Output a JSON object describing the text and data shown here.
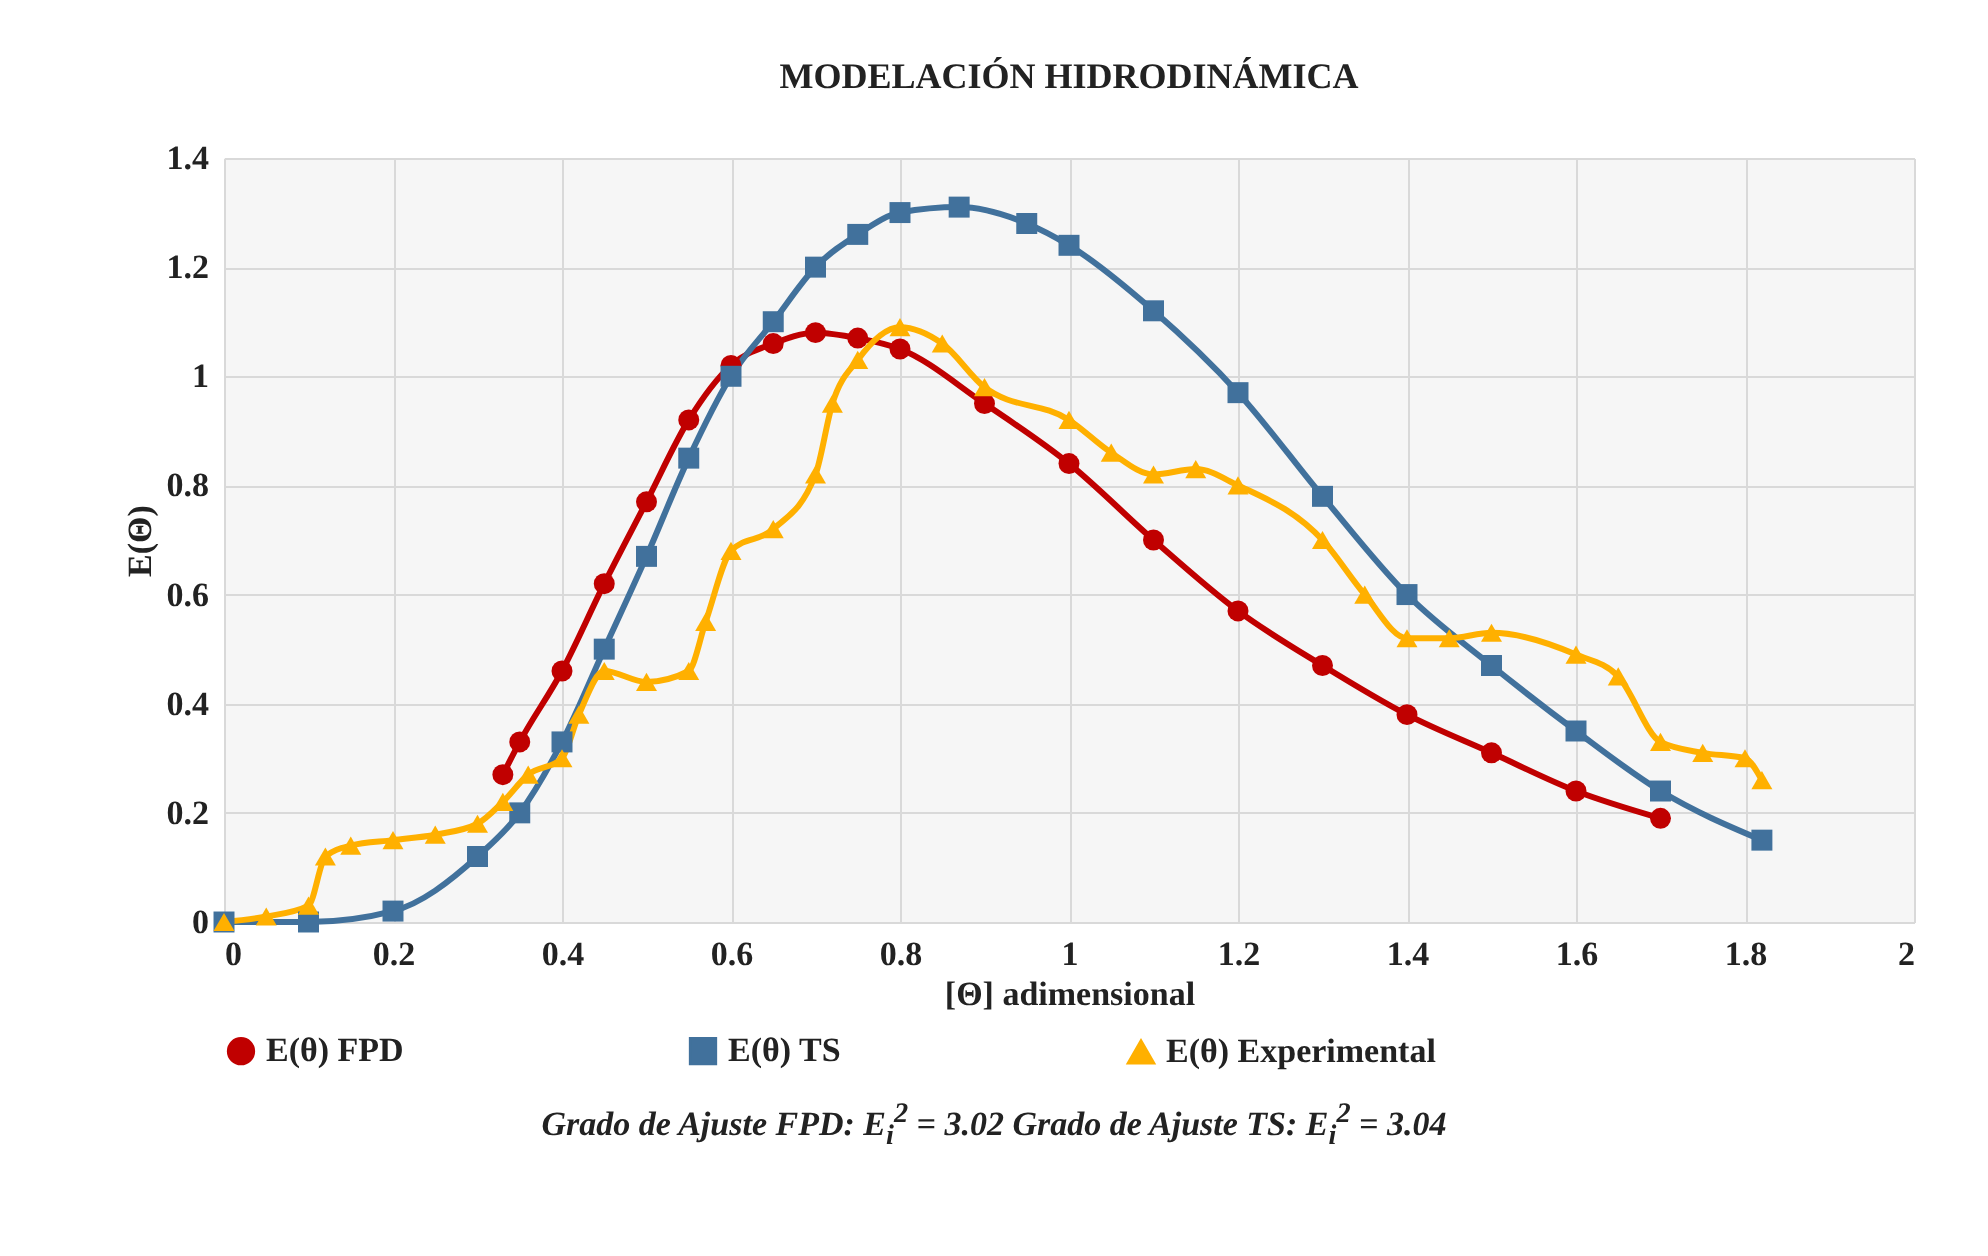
{
  "chart_data": {
    "type": "line",
    "title": "MODELACIÓN HIDRODINÁMICA",
    "xlabel": "[Θ] adimensional",
    "ylabel": "E(Θ)",
    "xlim": [
      0,
      2
    ],
    "xticks": [
      0,
      0.2,
      0.4,
      0.6,
      0.8,
      1,
      1.2,
      1.4,
      1.6,
      1.8,
      2
    ],
    "ylim": [
      0,
      1.4
    ],
    "yticks": [
      0,
      0.2,
      0.4,
      0.6,
      0.8,
      1,
      1.2,
      1.4
    ],
    "grid": true,
    "legend": "bottom",
    "line_style": "solid",
    "annotations": [
      "Grado de Ajuste FPD: E$_{i}$$^{2}$ = 3.02   Grado de Ajuste TS: E$_{i}$$^{2}$ = 3.04"
    ],
    "series": [
      {
        "name": "E(θ) FPD",
        "color": "#c00000",
        "marker": "circle",
        "x": [
          0.33,
          0.35,
          0.4,
          0.45,
          0.5,
          0.55,
          0.6,
          0.65,
          0.7,
          0.75,
          0.8,
          0.9,
          1.0,
          1.1,
          1.2,
          1.3,
          1.4,
          1.5,
          1.6,
          1.7
        ],
        "values": [
          0.27,
          0.33,
          0.46,
          0.62,
          0.77,
          0.92,
          1.02,
          1.06,
          1.08,
          1.07,
          1.05,
          0.95,
          0.84,
          0.7,
          0.57,
          0.47,
          0.38,
          0.31,
          0.24,
          0.19
        ]
      },
      {
        "name": "E(θ) TS",
        "color": "#41719c",
        "marker": "square",
        "x": [
          0,
          0.1,
          0.2,
          0.3,
          0.35,
          0.4,
          0.45,
          0.5,
          0.55,
          0.6,
          0.65,
          0.7,
          0.75,
          0.8,
          0.87,
          0.95,
          1.0,
          1.1,
          1.2,
          1.3,
          1.4,
          1.5,
          1.6,
          1.7,
          1.82
        ],
        "values": [
          0,
          0,
          0.02,
          0.12,
          0.2,
          0.33,
          0.5,
          0.67,
          0.85,
          1.0,
          1.1,
          1.2,
          1.26,
          1.3,
          1.31,
          1.28,
          1.24,
          1.12,
          0.97,
          0.78,
          0.6,
          0.47,
          0.35,
          0.24,
          0.15
        ]
      },
      {
        "name": "E(θ) Experimental",
        "color": "#ffb000",
        "marker": "triangle",
        "x": [
          0,
          0.05,
          0.1,
          0.12,
          0.15,
          0.2,
          0.25,
          0.3,
          0.33,
          0.36,
          0.4,
          0.42,
          0.45,
          0.5,
          0.55,
          0.57,
          0.6,
          0.65,
          0.7,
          0.72,
          0.75,
          0.8,
          0.85,
          0.9,
          1.0,
          1.05,
          1.1,
          1.15,
          1.2,
          1.3,
          1.35,
          1.4,
          1.45,
          1.5,
          1.6,
          1.65,
          1.7,
          1.75,
          1.8,
          1.82
        ],
        "values": [
          0,
          0.01,
          0.03,
          0.12,
          0.14,
          0.15,
          0.16,
          0.18,
          0.22,
          0.27,
          0.3,
          0.38,
          0.46,
          0.44,
          0.46,
          0.55,
          0.68,
          0.72,
          0.82,
          0.95,
          1.03,
          1.09,
          1.06,
          0.98,
          0.92,
          0.86,
          0.82,
          0.83,
          0.8,
          0.7,
          0.6,
          0.52,
          0.52,
          0.53,
          0.49,
          0.45,
          0.33,
          0.31,
          0.3,
          0.26
        ]
      }
    ]
  }
}
